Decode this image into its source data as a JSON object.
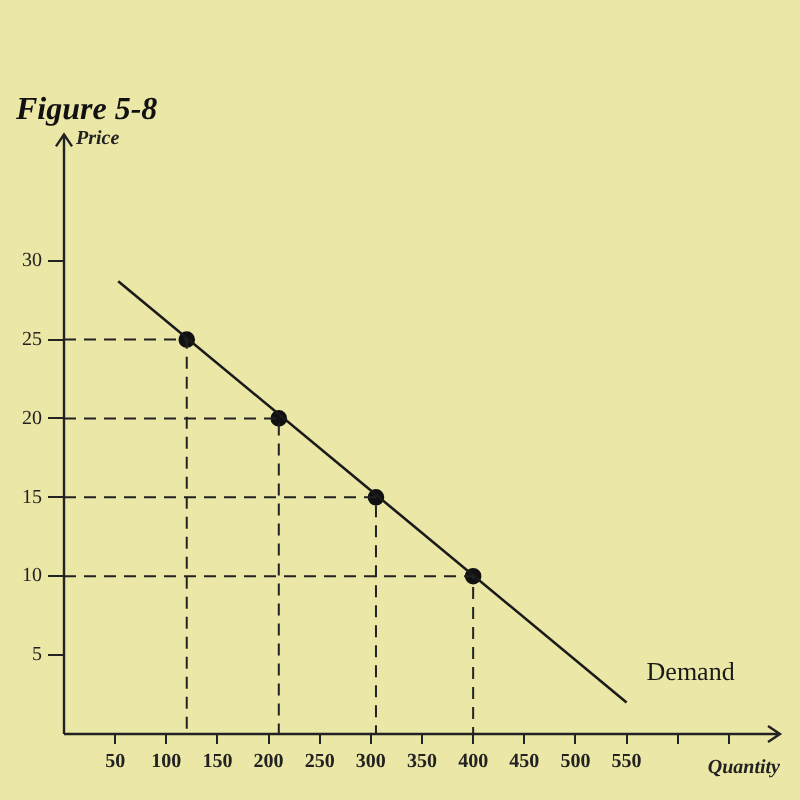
{
  "chart_data": {
    "type": "line",
    "title": "Figure 5-8",
    "xlabel": "Quantity",
    "ylabel": "Price",
    "series": [
      {
        "type": "line",
        "color": "#222222",
        "x": [
          0,
          120,
          120
        ],
        "values": [
          25,
          25,
          0
        ],
        "marker": "none",
        "line_style": "dashed"
      },
      {
        "type": "line",
        "color": "#222222",
        "x": [
          0,
          210,
          210
        ],
        "values": [
          20,
          20,
          0
        ],
        "marker": "none",
        "line_style": "dashed"
      },
      {
        "type": "line",
        "color": "#222222",
        "x": [
          0,
          305,
          305
        ],
        "values": [
          15,
          15,
          0
        ],
        "marker": "none",
        "line_style": "dashed"
      },
      {
        "type": "line",
        "color": "#222222",
        "x": [
          0,
          400,
          400
        ],
        "values": [
          10,
          10,
          0
        ],
        "marker": "none",
        "line_style": "dashed"
      },
      {
        "name": "Demand",
        "type": "line",
        "color": "#1a1a1a",
        "x": [
          53,
          550
        ],
        "values": [
          28.7,
          2
        ],
        "marker": "none"
      },
      {
        "type": "scatter",
        "color": "#111111",
        "x": [
          120,
          210,
          305,
          400
        ],
        "values": [
          25,
          20,
          15,
          10
        ],
        "marker": "circle"
      }
    ],
    "xlim": [
      0,
      700
    ],
    "ylim": [
      0,
      38
    ],
    "xticks": [
      50,
      100,
      150,
      200,
      250,
      300,
      350,
      400,
      450,
      500,
      550,
      {
        "value": 600,
        "label": null
      },
      {
        "value": 650,
        "label": null
      }
    ],
    "yticks": [
      5,
      10,
      15,
      20,
      25,
      30
    ],
    "grid": false,
    "legend": false
  }
}
